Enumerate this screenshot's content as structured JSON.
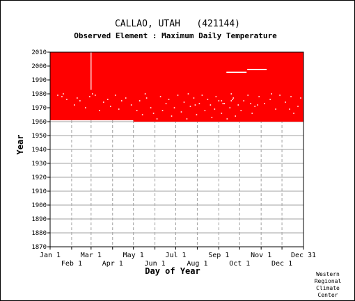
{
  "chart_data": {
    "type": "heatmap",
    "title": "CALLAO, UTAH   (421144)",
    "subtitle": "Observed Element : Maximum Daily Temperature",
    "xlabel": "Day of Year",
    "ylabel": "Year",
    "xlim": [
      1,
      366
    ],
    "ylim": [
      1870,
      2010
    ],
    "grid": true,
    "y_ticks": [
      2010,
      2000,
      1990,
      1980,
      1970,
      1960,
      1950,
      1940,
      1930,
      1920,
      1910,
      1900,
      1890,
      1880,
      1870
    ],
    "x_ticks_row1": [
      {
        "label": "Jan 1",
        "day": 1
      },
      {
        "label": "Mar 1",
        "day": 60
      },
      {
        "label": "May 1",
        "day": 121
      },
      {
        "label": "Jul 1",
        "day": 182
      },
      {
        "label": "Sep 1",
        "day": 244
      },
      {
        "label": "Nov 1",
        "day": 305
      },
      {
        "label": "Dec 31",
        "day": 366
      }
    ],
    "x_ticks_row2": [
      {
        "label": "Feb 1",
        "day": 32
      },
      {
        "label": "Apr 1",
        "day": 91
      },
      {
        "label": "Jun 1",
        "day": 152
      },
      {
        "label": "Aug 1",
        "day": 213
      },
      {
        "label": "Oct 1",
        "day": 274
      },
      {
        "label": "Dec 1",
        "day": 335
      }
    ],
    "color": "#ff0000",
    "data_coverage": {
      "year_start": 1961,
      "year_end": 2010,
      "late_start_segment": {
        "day_start": 121,
        "day_end": 366,
        "year": 1961
      },
      "gap_lines": [
        {
          "day": 60,
          "year_start": 1983,
          "year_end": 2010
        },
        {
          "day_start": 255,
          "day_end": 284,
          "year": 1995.5
        },
        {
          "day_start": 285,
          "day_end": 313,
          "year": 1997.5
        }
      ],
      "missing_days": [
        [
          12,
          1979
        ],
        [
          18,
          1978
        ],
        [
          25,
          1976
        ],
        [
          36,
          1972
        ],
        [
          40,
          1977
        ],
        [
          44,
          1975
        ],
        [
          52,
          1970
        ],
        [
          58,
          1978
        ],
        [
          66,
          1979
        ],
        [
          72,
          1968
        ],
        [
          78,
          1974
        ],
        [
          84,
          1976
        ],
        [
          88,
          1971
        ],
        [
          95,
          1979
        ],
        [
          100,
          1969
        ],
        [
          104,
          1975
        ],
        [
          110,
          1977
        ],
        [
          118,
          1972
        ],
        [
          126,
          1968
        ],
        [
          130,
          1975
        ],
        [
          134,
          1965
        ],
        [
          140,
          1977
        ],
        [
          146,
          1970
        ],
        [
          150,
          1966
        ],
        [
          155,
          1962
        ],
        [
          160,
          1978
        ],
        [
          163,
          1968
        ],
        [
          168,
          1973
        ],
        [
          172,
          1976
        ],
        [
          176,
          1964
        ],
        [
          180,
          1970
        ],
        [
          185,
          1979
        ],
        [
          190,
          1967
        ],
        [
          194,
          1974
        ],
        [
          198,
          1962
        ],
        [
          203,
          1971
        ],
        [
          208,
          1977
        ],
        [
          212,
          1965
        ],
        [
          216,
          1973
        ],
        [
          220,
          1979
        ],
        [
          224,
          1968
        ],
        [
          228,
          1976
        ],
        [
          232,
          1972
        ],
        [
          234,
          1963
        ],
        [
          238,
          1969
        ],
        [
          240,
          1978
        ],
        [
          244,
          1975
        ],
        [
          248,
          1966
        ],
        [
          252,
          1973
        ],
        [
          256,
          1962
        ],
        [
          260,
          1970
        ],
        [
          265,
          1977
        ],
        [
          268,
          1964
        ],
        [
          272,
          1972
        ],
        [
          276,
          1968
        ],
        [
          280,
          1975
        ],
        [
          286,
          1979
        ],
        [
          292,
          1966
        ],
        [
          296,
          1971
        ],
        [
          302,
          1978
        ],
        [
          310,
          1973
        ],
        [
          318,
          1976
        ],
        [
          326,
          1969
        ],
        [
          332,
          1979
        ],
        [
          340,
          1974
        ],
        [
          348,
          1978
        ],
        [
          352,
          1966
        ],
        [
          358,
          1971
        ],
        [
          362,
          1977
        ],
        [
          20,
          1980
        ],
        [
          62,
          1980
        ],
        [
          138,
          1980
        ],
        [
          200,
          1980
        ],
        [
          262,
          1980
        ],
        [
          320,
          1980
        ],
        [
          248,
          1975
        ],
        [
          250,
          1973
        ],
        [
          262,
          1975
        ],
        [
          264,
          1976
        ],
        [
          210,
          1972
        ],
        [
          290,
          1973
        ],
        [
          300,
          1972
        ],
        [
          346,
          1969
        ]
      ]
    }
  },
  "credit": [
    "Western",
    "Regional",
    "Climate",
    "Center"
  ]
}
